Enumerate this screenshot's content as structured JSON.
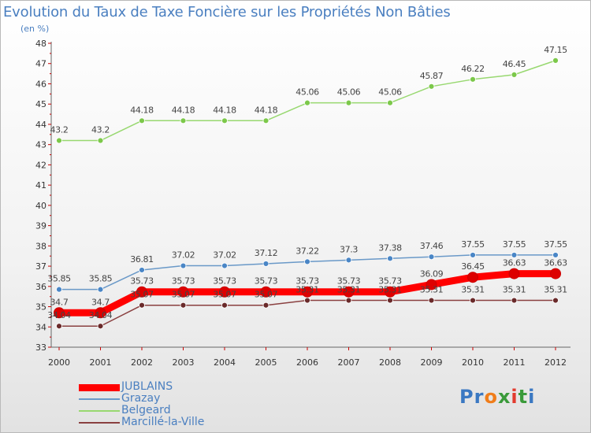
{
  "header": {
    "title": "Evolution du Taux de Taxe Foncière sur les Propriétés Non Bâties",
    "subtitle": "(en %)"
  },
  "logo": {
    "text": "Proxiti",
    "letters": [
      "P",
      "r",
      "o",
      "x",
      "i",
      "t",
      "i"
    ],
    "colors": [
      "#3a78c2",
      "#3a78c2",
      "#f07d1a",
      "#3a9a3a",
      "#e23b2e",
      "#3a9a3a",
      "#3a78c2"
    ]
  },
  "chart_data": {
    "type": "line",
    "title": "Evolution du Taux de Taxe Foncière sur les Propriétés Non Bâties",
    "ylabel": "(en %)",
    "xlabel": "",
    "ylim": [
      33,
      48
    ],
    "yticks": [
      33,
      34,
      35,
      36,
      37,
      38,
      39,
      40,
      41,
      42,
      43,
      44,
      45,
      46,
      47,
      48
    ],
    "grid": false,
    "legend_position": "bottom-left",
    "categories": [
      "2000",
      "2001",
      "2002",
      "2003",
      "2004",
      "2005",
      "2006",
      "2007",
      "2008",
      "2009",
      "2010",
      "2011",
      "2012"
    ],
    "series": [
      {
        "name": "JUBLAINS",
        "color": "#ff0000",
        "marker": "#dd0000",
        "values": [
          34.7,
          34.7,
          35.73,
          35.73,
          35.73,
          35.73,
          35.73,
          35.73,
          35.73,
          36.09,
          36.45,
          36.63,
          36.63
        ],
        "labels": [
          "34.7",
          "34.7",
          "35.73",
          "35.73",
          "35.73",
          "35.73",
          "35.73",
          "35.73",
          "35.73",
          "36.09",
          "36.45",
          "36.63",
          "36.63"
        ]
      },
      {
        "name": "Grazay",
        "color": "#6a99c8",
        "marker": "#4a86c6",
        "values": [
          35.85,
          35.85,
          36.81,
          37.02,
          37.02,
          37.12,
          37.22,
          37.3,
          37.38,
          37.46,
          37.55,
          37.55,
          37.55
        ],
        "labels": [
          "35.85",
          "35.85",
          "36.81",
          "37.02",
          "37.02",
          "37.12",
          "37.22",
          "37.3",
          "37.38",
          "37.46",
          "37.55",
          "37.55",
          "37.55"
        ]
      },
      {
        "name": "Belgeard",
        "color": "#98d870",
        "marker": "#7cc84a",
        "values": [
          43.2,
          43.2,
          44.18,
          44.18,
          44.18,
          44.18,
          45.06,
          45.06,
          45.06,
          45.87,
          46.22,
          46.45,
          47.15
        ],
        "labels": [
          "43.2",
          "43.2",
          "44.18",
          "44.18",
          "44.18",
          "44.18",
          "45.06",
          "45.06",
          "45.06",
          "45.87",
          "46.22",
          "46.45",
          "47.15"
        ]
      },
      {
        "name": "Marcillé-la-Ville",
        "color": "#8a4040",
        "marker": "#6a2a2a",
        "values": [
          34.04,
          34.04,
          35.07,
          35.07,
          35.07,
          35.07,
          35.31,
          35.31,
          35.31,
          35.31,
          35.31,
          35.31,
          35.31
        ],
        "labels": [
          "34.04",
          "34.04",
          "35.07",
          "35.07",
          "35.07",
          "35.07",
          "35.31",
          "35.31",
          "35.31",
          "35.31",
          "35.31",
          "35.31",
          "35.31"
        ]
      }
    ]
  }
}
